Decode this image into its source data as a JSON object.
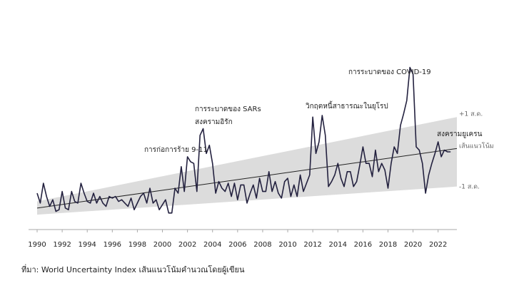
{
  "chart_data": {
    "type": "line",
    "x": [
      1990,
      1990.25,
      1990.5,
      1990.75,
      1991,
      1991.25,
      1991.5,
      1991.75,
      1992,
      1992.25,
      1992.5,
      1992.75,
      1993,
      1993.25,
      1993.5,
      1993.75,
      1994,
      1994.25,
      1994.5,
      1994.75,
      1995,
      1995.25,
      1995.5,
      1995.75,
      1996,
      1996.25,
      1996.5,
      1996.75,
      1997,
      1997.25,
      1997.5,
      1997.75,
      1998,
      1998.25,
      1998.5,
      1998.75,
      1999,
      1999.25,
      1999.5,
      1999.75,
      2000,
      2000.25,
      2000.5,
      2000.75,
      2001,
      2001.25,
      2001.5,
      2001.75,
      2002,
      2002.25,
      2002.5,
      2002.75,
      2003,
      2003.25,
      2003.5,
      2003.75,
      2004,
      2004.25,
      2004.5,
      2004.75,
      2005,
      2005.25,
      2005.5,
      2005.75,
      2006,
      2006.25,
      2006.5,
      2006.75,
      2007,
      2007.25,
      2007.5,
      2007.75,
      2008,
      2008.25,
      2008.5,
      2008.75,
      2009,
      2009.25,
      2009.5,
      2009.75,
      2010,
      2010.25,
      2010.5,
      2010.75,
      2011,
      2011.25,
      2011.5,
      2011.75,
      2012,
      2012.25,
      2012.5,
      2012.75,
      2013,
      2013.25,
      2013.5,
      2013.75,
      2014,
      2014.25,
      2014.5,
      2014.75,
      2015,
      2015.25,
      2015.5,
      2015.75,
      2016,
      2016.25,
      2016.5,
      2016.75,
      2017,
      2017.25,
      2017.5,
      2017.75,
      2018,
      2018.25,
      2018.5,
      2018.75,
      2019,
      2019.25,
      2019.5,
      2019.75,
      2020,
      2020.25,
      2020.5,
      2020.75,
      2021,
      2021.25,
      2021.5,
      2021.75,
      2022,
      2022.25,
      2022.5,
      2022.75,
      2023
    ],
    "series": [
      {
        "color": "#23213f",
        "values": [
          22,
          16,
          28,
          20,
          14,
          18,
          11,
          12,
          23,
          13,
          12,
          23,
          17,
          16,
          28,
          22,
          17,
          16,
          22,
          16,
          20,
          16,
          14,
          20,
          19,
          20,
          17,
          18,
          16,
          14,
          19,
          12,
          16,
          20,
          22,
          16,
          25,
          16,
          18,
          12,
          15,
          18,
          10,
          10,
          25,
          22,
          38,
          23,
          44,
          41,
          40,
          23,
          57,
          61,
          46,
          51,
          40,
          22,
          29,
          25,
          23,
          28,
          20,
          28,
          18,
          27,
          27,
          16,
          22,
          27,
          19,
          31,
          23,
          23,
          35,
          23,
          29,
          22,
          19,
          29,
          31,
          20,
          27,
          20,
          33,
          23,
          28,
          33,
          68,
          46,
          53,
          69,
          57,
          26,
          29,
          33,
          40,
          31,
          26,
          35,
          35,
          26,
          29,
          39,
          50,
          40,
          40,
          32,
          48,
          35,
          40,
          36,
          25,
          40,
          50,
          46,
          63,
          70,
          78,
          98,
          94,
          50,
          48,
          40,
          22,
          33,
          40,
          46,
          53,
          44,
          48,
          47,
          47
        ]
      }
    ],
    "trend_line": {
      "x": [
        1990,
        2023.5
      ],
      "values": [
        13,
        49
      ]
    },
    "band": {
      "x": [
        1990,
        2023.5
      ],
      "upper": [
        17,
        68
      ],
      "lower": [
        9,
        26
      ]
    },
    "band_labels": {
      "upper": "+1 ส.ด.",
      "trend": "เส้นแนวโน้ม",
      "lower": "-1 ส.ด."
    },
    "annotations": [
      "การก่อการร้าย 9-11",
      "การระบาดของ SARs",
      "สงครามอิรัก",
      "วิกฤตหนี้สาธารณะในยุโรป",
      "การระบาดของ COVID-19",
      "สงครามยูเครน"
    ],
    "xlim": [
      1990,
      2023.5
    ],
    "ylim": [
      0,
      100
    ],
    "xticks": [
      1990,
      1992,
      1994,
      1996,
      1998,
      2000,
      2002,
      2004,
      2006,
      2008,
      2010,
      2012,
      2014,
      2016,
      2018,
      2020,
      2022
    ],
    "source": "ที่มา: World Uncertainty Index เส้นแนวโน้มคำนวณโดยผู้เขียน"
  }
}
